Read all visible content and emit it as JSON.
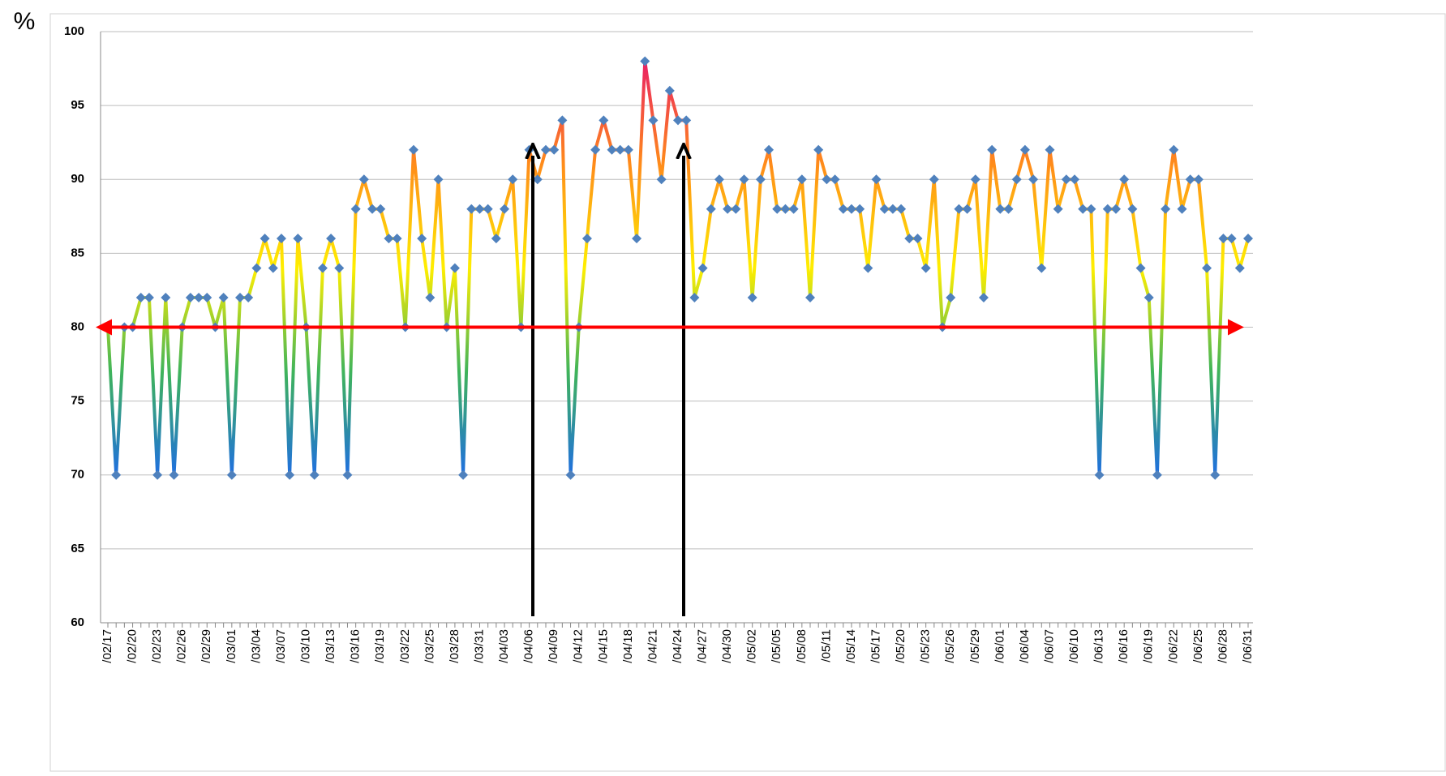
{
  "chart_data": {
    "type": "line",
    "y_axis_label": "%",
    "categories": [
      "/02/17",
      null,
      null,
      "/02/20",
      null,
      null,
      "/02/23",
      null,
      null,
      "/02/26",
      null,
      null,
      "/02/29",
      null,
      null,
      "/03/01",
      null,
      null,
      "/03/04",
      null,
      null,
      "/03/07",
      null,
      null,
      "/03/10",
      null,
      null,
      "/03/13",
      null,
      null,
      "/03/16",
      null,
      null,
      "/03/19",
      null,
      null,
      "/03/22",
      null,
      null,
      "/03/25",
      null,
      null,
      "/03/28",
      null,
      null,
      "/03/31",
      null,
      null,
      "/04/03",
      null,
      null,
      "/04/06",
      null,
      null,
      "/04/09",
      null,
      null,
      "/04/12",
      null,
      null,
      "/04/15",
      null,
      null,
      "/04/18",
      null,
      null,
      "/04/21",
      null,
      null,
      "/04/24",
      null,
      null,
      "/04/27",
      null,
      null,
      "/04/30",
      null,
      null,
      "/05/02",
      null,
      null,
      "/05/05",
      null,
      null,
      "/05/08",
      null,
      null,
      "/05/11",
      null,
      null,
      "/05/14",
      null,
      null,
      "/05/17",
      null,
      null,
      "/05/20",
      null,
      null,
      "/05/23",
      null,
      null,
      "/05/26",
      null,
      null,
      "/05/29",
      null,
      null,
      "/06/01",
      null,
      null,
      "/06/04",
      null,
      null,
      "/06/07",
      null,
      null,
      "/06/10",
      null,
      null,
      "/06/13",
      null,
      null,
      "/06/16",
      null,
      null,
      "/06/19",
      null,
      null,
      "/06/22",
      null,
      null,
      "/06/25",
      null,
      null,
      "/06/28",
      null,
      null,
      "/06/31"
    ],
    "values": [
      80,
      70,
      80,
      80,
      82,
      82,
      70,
      82,
      70,
      80,
      82,
      82,
      82,
      80,
      82,
      70,
      82,
      82,
      84,
      86,
      84,
      86,
      70,
      86,
      80,
      70,
      84,
      86,
      84,
      70,
      88,
      90,
      88,
      88,
      86,
      86,
      80,
      92,
      86,
      82,
      90,
      80,
      84,
      70,
      88,
      88,
      88,
      86,
      88,
      90,
      80,
      92,
      90,
      92,
      92,
      94,
      70,
      80,
      86,
      92,
      94,
      92,
      92,
      92,
      86,
      98,
      94,
      90,
      96,
      94,
      94,
      82,
      84,
      88,
      90,
      88,
      88,
      90,
      82,
      90,
      92,
      88,
      88,
      88,
      90,
      82,
      92,
      90,
      90,
      88,
      88,
      88,
      84,
      90,
      88,
      88,
      88,
      86,
      86,
      84,
      90,
      80,
      82,
      88,
      88,
      90,
      82,
      92,
      88,
      88,
      90,
      92,
      90,
      84,
      92,
      88,
      90,
      90,
      88,
      88,
      70,
      88,
      88,
      90,
      88,
      84,
      82,
      70,
      88,
      92,
      88,
      90,
      90,
      84,
      70,
      86,
      86,
      84,
      86
    ],
    "marker_color": "#4f81bd",
    "line_colors": [
      "#1f6fe0",
      "#3fb45a",
      "#ffee00",
      "#ff8c1a",
      "#ea2063"
    ],
    "reference_line": 80,
    "reference_color": "#ff0000",
    "ylim": [
      60,
      100
    ],
    "yticks": [
      60,
      65,
      70,
      75,
      80,
      85,
      90,
      95,
      100
    ],
    "grid": true
  }
}
